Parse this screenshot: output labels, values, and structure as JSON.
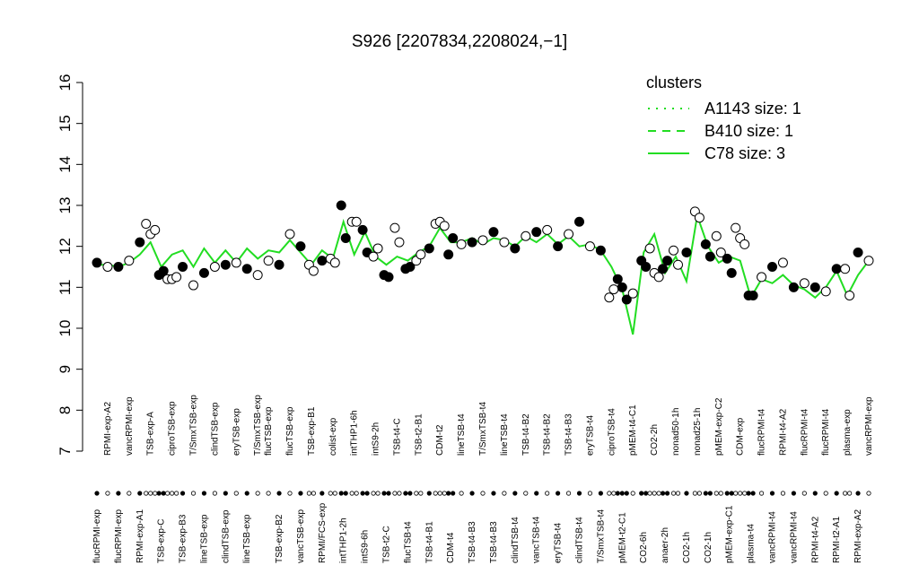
{
  "chart_data": {
    "type": "scatter",
    "title": "S926 [2207834,2208024,−1]",
    "ylim": [
      7,
      16
    ],
    "yticks": [
      7,
      8,
      9,
      10,
      11,
      12,
      13,
      14,
      15,
      16
    ],
    "legend_title": "clusters",
    "legend_color": "#22dd22",
    "legend_entries": [
      {
        "label": "A1143 size: 1",
        "style": "dotted"
      },
      {
        "label": "B410 size: 1",
        "style": "dashed"
      },
      {
        "label": "C78 size: 3",
        "style": "solid"
      }
    ],
    "line": {
      "color": "#22dd22",
      "values": [
        11.55,
        11.55,
        11.5,
        11.6,
        11.8,
        12.1,
        11.5,
        11.8,
        11.9,
        11.5,
        11.95,
        11.6,
        11.9,
        11.6,
        11.95,
        11.7,
        11.9,
        11.85,
        12.15,
        11.85,
        11.55,
        11.9,
        11.7,
        12.6,
        11.8,
        12.35,
        11.75,
        11.55,
        11.75,
        11.65,
        11.85,
        12.0,
        12.45,
        12.1,
        12.1,
        12.2,
        12.05,
        12.2,
        12.15,
        12.0,
        12.25,
        12.1,
        12.3,
        12.05,
        12.25,
        12.0,
        12.05,
        11.9,
        11.5,
        10.95,
        9.85,
        11.85,
        12.3,
        11.35,
        11.75,
        11.15,
        12.75,
        12.0,
        11.6,
        11.75,
        11.65,
        10.75,
        11.2,
        11.1,
        11.3,
        11.05,
        10.95,
        10.75,
        11.0,
        11.4,
        10.8,
        11.3,
        11.65
      ]
    },
    "groups": [
      {
        "label": "flucRPMI-exp",
        "filled": true,
        "values": [
          11.6
        ]
      },
      {
        "label": "RPMI-exp-A2",
        "filled": false,
        "values": [
          11.5
        ]
      },
      {
        "label": "flucRPMI-exp",
        "filled": true,
        "values": [
          11.5
        ]
      },
      {
        "label": "vancRPMI-exp",
        "filled": false,
        "values": [
          11.65
        ]
      },
      {
        "label": "RPMI-exp-A1",
        "filled": true,
        "values": [
          12.1
        ]
      },
      {
        "label": "TSB-exp-A",
        "filled": false,
        "values": [
          12.55,
          12.3,
          12.4
        ]
      },
      {
        "label": "TSB-exp-C",
        "filled": true,
        "values": [
          11.3,
          11.4
        ]
      },
      {
        "label": "ciproTSB-exp",
        "filled": false,
        "values": [
          11.2,
          11.2,
          11.25
        ]
      },
      {
        "label": "TSB-exp-B3",
        "filled": true,
        "values": [
          11.5
        ]
      },
      {
        "label": "T/SmxTSB-exp",
        "filled": false,
        "values": [
          11.05
        ]
      },
      {
        "label": "lineTSB-exp",
        "filled": true,
        "values": [
          11.35
        ]
      },
      {
        "label": "clindTSB-exp",
        "filled": false,
        "values": [
          11.5
        ]
      },
      {
        "label": "clindTSB-exp",
        "filled": true,
        "values": [
          11.55
        ]
      },
      {
        "label": "eryTSB-exp",
        "filled": false,
        "values": [
          11.6
        ]
      },
      {
        "label": "lineTSB-exp",
        "filled": true,
        "values": [
          11.45
        ]
      },
      {
        "label": "T/SmxTSB-exp",
        "filled": false,
        "values": [
          11.3
        ]
      },
      {
        "label": "flucTSB-exp",
        "filled": false,
        "values": [
          11.65
        ]
      },
      {
        "label": "TSB-exp-B2",
        "filled": true,
        "values": [
          11.55
        ]
      },
      {
        "label": "flucTSB-exp",
        "filled": false,
        "values": [
          12.3
        ]
      },
      {
        "label": "vancTSB-exp",
        "filled": true,
        "values": [
          12.0
        ]
      },
      {
        "label": "TSB-exp-B1",
        "filled": false,
        "values": [
          11.55,
          11.4
        ]
      },
      {
        "label": "RPMI/FCS-exp",
        "filled": true,
        "values": [
          11.65
        ]
      },
      {
        "label": "colist-exp",
        "filled": false,
        "values": [
          11.7,
          11.6
        ]
      },
      {
        "label": "intTHP1-2h",
        "filled": true,
        "values": [
          13.0,
          12.2
        ]
      },
      {
        "label": "intTHP1-6h",
        "filled": false,
        "values": [
          12.6,
          12.6
        ]
      },
      {
        "label": "intS9-6h",
        "filled": true,
        "values": [
          12.4,
          11.85
        ]
      },
      {
        "label": "intS9-2h",
        "filled": false,
        "values": [
          11.75,
          11.95
        ]
      },
      {
        "label": "TSB-t2-C",
        "filled": true,
        "values": [
          11.3,
          11.25
        ]
      },
      {
        "label": "TSB-t4-C",
        "filled": false,
        "values": [
          12.45,
          12.1
        ]
      },
      {
        "label": "flucTSB-t4",
        "filled": true,
        "values": [
          11.45,
          11.5
        ]
      },
      {
        "label": "TSB-t2-B1",
        "filled": false,
        "values": [
          11.65,
          11.8
        ]
      },
      {
        "label": "TSB-t4-B1",
        "filled": true,
        "values": [
          11.95
        ]
      },
      {
        "label": "CDM-t2",
        "filled": false,
        "values": [
          12.55,
          12.6,
          12.5
        ]
      },
      {
        "label": "CDM-t4",
        "filled": true,
        "values": [
          11.8,
          12.2
        ]
      },
      {
        "label": "lineTSB-t4",
        "filled": false,
        "values": [
          12.05
        ]
      },
      {
        "label": "TSB-t4-B3",
        "filled": true,
        "values": [
          12.1
        ]
      },
      {
        "label": "T/SmxTSB-t4",
        "filled": false,
        "values": [
          12.15
        ]
      },
      {
        "label": "TSB-t4-B3",
        "filled": true,
        "values": [
          12.35
        ]
      },
      {
        "label": "lineTSB-t4",
        "filled": false,
        "values": [
          12.1
        ]
      },
      {
        "label": "clindTSB-t4",
        "filled": true,
        "values": [
          11.95
        ]
      },
      {
        "label": "TSB-t4-B2",
        "filled": false,
        "values": [
          12.25
        ]
      },
      {
        "label": "vancTSB-t4",
        "filled": true,
        "values": [
          12.35
        ]
      },
      {
        "label": "TSB-t4-B2",
        "filled": false,
        "values": [
          12.4
        ]
      },
      {
        "label": "eryTSB-t4",
        "filled": true,
        "values": [
          12.0
        ]
      },
      {
        "label": "TSB-t4-B3",
        "filled": false,
        "values": [
          12.3
        ]
      },
      {
        "label": "clindTSB-t4",
        "filled": true,
        "values": [
          12.6
        ]
      },
      {
        "label": "eryTSB-t4",
        "filled": false,
        "values": [
          12.0
        ]
      },
      {
        "label": "T/SmxTSB-t4",
        "filled": true,
        "values": [
          11.9
        ]
      },
      {
        "label": "ciproTSB-t4",
        "filled": false,
        "values": [
          10.75,
          10.95
        ]
      },
      {
        "label": "pMEM-t2-C1",
        "filled": true,
        "values": [
          11.2,
          11.0,
          10.7
        ]
      },
      {
        "label": "pMEM-t4-C1",
        "filled": false,
        "values": [
          10.85
        ]
      },
      {
        "label": "CO2-6h",
        "filled": true,
        "values": [
          11.65,
          11.5
        ]
      },
      {
        "label": "CO2-2h",
        "filled": false,
        "values": [
          11.95,
          11.35,
          11.25
        ]
      },
      {
        "label": "anaer-2h",
        "filled": true,
        "values": [
          11.45,
          11.65
        ]
      },
      {
        "label": "nonad50-1h",
        "filled": false,
        "values": [
          11.9,
          11.55
        ]
      },
      {
        "label": "CO2-1h",
        "filled": true,
        "values": [
          11.85
        ]
      },
      {
        "label": "nonad25-1h",
        "filled": false,
        "values": [
          12.85,
          12.7
        ]
      },
      {
        "label": "CO2-1h",
        "filled": true,
        "values": [
          12.05,
          11.75
        ]
      },
      {
        "label": "pMEM-exp-C2",
        "filled": false,
        "values": [
          12.25,
          11.85
        ]
      },
      {
        "label": "pMEM-exp-C1",
        "filled": true,
        "values": [
          11.7,
          11.35
        ]
      },
      {
        "label": "CDM-exp",
        "filled": false,
        "values": [
          12.45,
          12.2,
          12.05
        ]
      },
      {
        "label": "plasma-t4",
        "filled": true,
        "values": [
          10.8,
          10.8
        ]
      },
      {
        "label": "flucRPMI-t4",
        "filled": false,
        "values": [
          11.25
        ]
      },
      {
        "label": "vancRPMI-t4",
        "filled": true,
        "values": [
          11.5
        ]
      },
      {
        "label": "RPMI-t4-A2",
        "filled": false,
        "values": [
          11.6
        ]
      },
      {
        "label": "vancRPMI-t4",
        "filled": true,
        "values": [
          11.0
        ]
      },
      {
        "label": "flucRPMI-t4",
        "filled": false,
        "values": [
          11.1
        ]
      },
      {
        "label": "RPMI-t4-A2",
        "filled": true,
        "values": [
          11.0
        ]
      },
      {
        "label": "flucRPMI-t4",
        "filled": false,
        "values": [
          10.9
        ]
      },
      {
        "label": "RPMI-t2-A1",
        "filled": true,
        "values": [
          11.45
        ]
      },
      {
        "label": "plasma-exp",
        "filled": false,
        "values": [
          11.45,
          10.8
        ]
      },
      {
        "label": "RPMI-exp-A2",
        "filled": true,
        "values": [
          11.85
        ]
      },
      {
        "label": "vancRPMI-exp",
        "filled": false,
        "values": [
          11.65
        ]
      }
    ]
  }
}
